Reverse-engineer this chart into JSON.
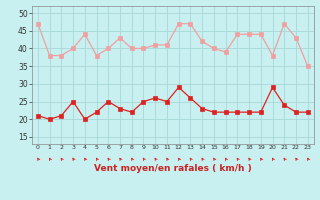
{
  "x": [
    0,
    1,
    2,
    3,
    4,
    5,
    6,
    7,
    8,
    9,
    10,
    11,
    12,
    13,
    14,
    15,
    16,
    17,
    18,
    19,
    20,
    21,
    22,
    23
  ],
  "wind_avg": [
    21,
    20,
    21,
    25,
    20,
    22,
    25,
    23,
    22,
    25,
    26,
    25,
    29,
    26,
    23,
    22,
    22,
    22,
    22,
    22,
    29,
    24,
    22,
    22
  ],
  "wind_gust": [
    47,
    38,
    38,
    40,
    44,
    38,
    40,
    43,
    40,
    40,
    41,
    41,
    47,
    47,
    42,
    40,
    39,
    44,
    44,
    44,
    38,
    47,
    43,
    35
  ],
  "avg_color": "#dd2222",
  "gust_color": "#f0a0a0",
  "bg_color": "#c8f0f0",
  "grid_color": "#a8d8d8",
  "xlabel": "Vent moyen/en rafales ( km/h )",
  "xlabel_color": "#cc2222",
  "yticks": [
    15,
    20,
    25,
    30,
    35,
    40,
    45,
    50
  ],
  "xticks": [
    0,
    1,
    2,
    3,
    4,
    5,
    6,
    7,
    8,
    9,
    10,
    11,
    12,
    13,
    14,
    15,
    16,
    17,
    18,
    19,
    20,
    21,
    22,
    23
  ],
  "ylim": [
    13,
    52
  ],
  "xlim": [
    -0.5,
    23.5
  ],
  "marker_size": 2.5,
  "linewidth": 0.9
}
